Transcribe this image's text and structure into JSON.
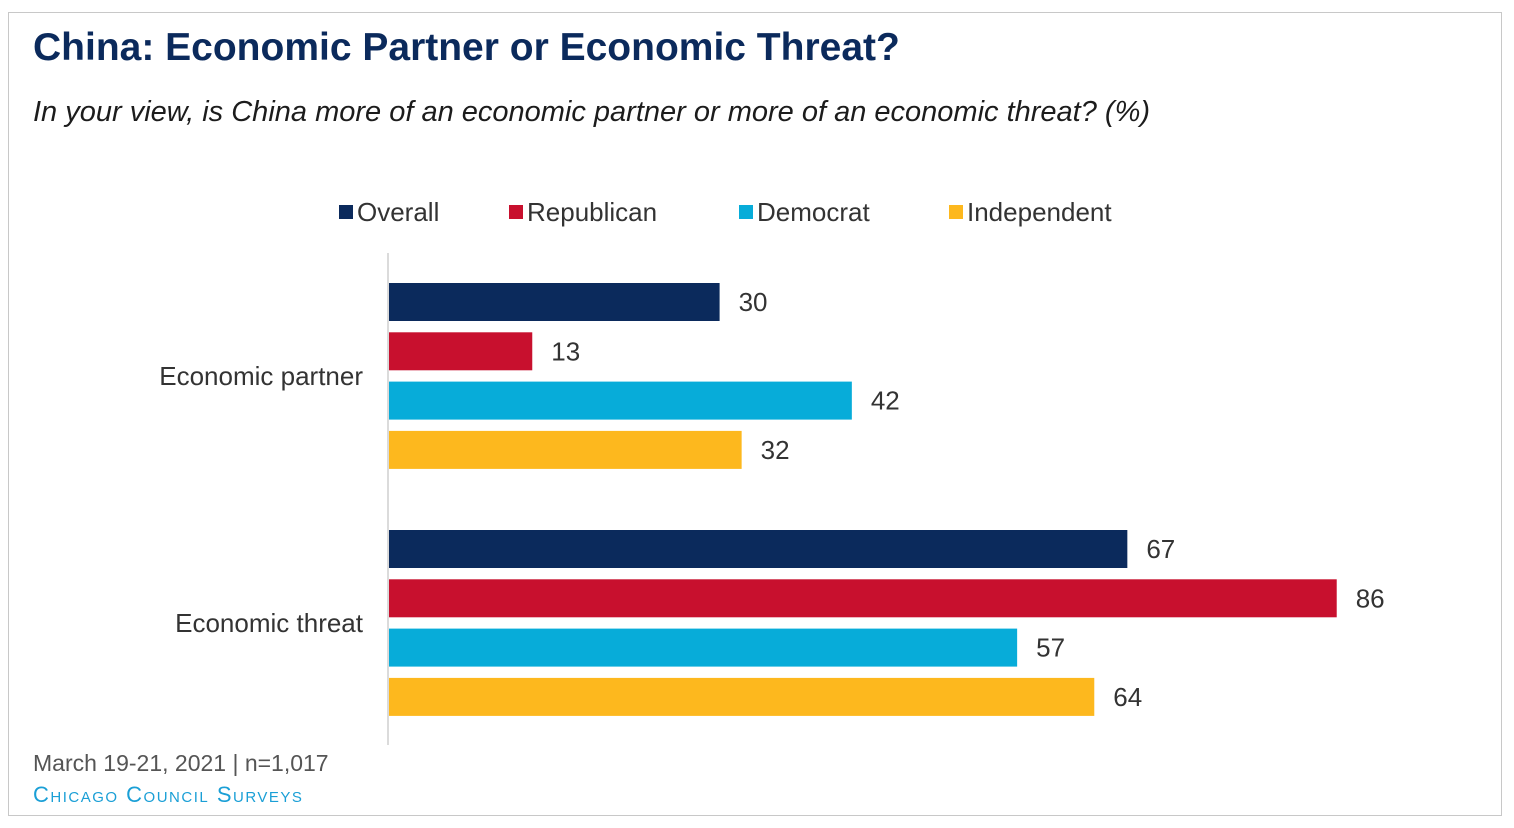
{
  "title": "China: Economic Partner or Economic Threat?",
  "subtitle": "In your view, is China more of an economic partner or more of an economic threat? (%)",
  "source": "March 19-21, 2021 | n=1,017",
  "brand": "Chicago Council Surveys",
  "chart_data": {
    "type": "bar",
    "orientation": "horizontal",
    "categories": [
      "Economic partner",
      "Economic threat"
    ],
    "series": [
      {
        "name": "Overall",
        "color": "#0b2a5c",
        "values": [
          30,
          67
        ]
      },
      {
        "name": "Republican",
        "color": "#c8102e",
        "values": [
          13,
          86
        ]
      },
      {
        "name": "Democrat",
        "color": "#07acd9",
        "values": [
          42,
          57
        ]
      },
      {
        "name": "Independent",
        "color": "#fdb81e",
        "values": [
          32,
          64
        ]
      }
    ],
    "xlim": [
      0,
      100
    ],
    "legend_position": "top",
    "grid": false,
    "data_labels": true
  }
}
